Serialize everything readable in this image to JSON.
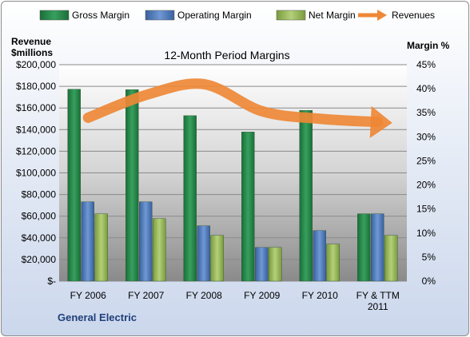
{
  "chart_data": {
    "type": "bar",
    "title": "12-Month Period Margins",
    "categories": [
      "FY 2006",
      "FY 2007",
      "FY 2008",
      "FY 2009",
      "FY 2010",
      "FY & TTM 2011"
    ],
    "series": [
      {
        "name": "Gross Margin",
        "axis": "right",
        "color": "#2a8f4e",
        "values": [
          39.9,
          39.8,
          34.4,
          31.0,
          35.5,
          14.0
        ]
      },
      {
        "name": "Operating Margin",
        "axis": "right",
        "color": "#4f7ec2",
        "values": [
          16.5,
          16.5,
          11.5,
          7.0,
          10.5,
          14.0
        ]
      },
      {
        "name": "Net Margin",
        "axis": "right",
        "color": "#9bbb59",
        "values": [
          14.0,
          13.0,
          9.5,
          7.0,
          7.7,
          9.5
        ]
      },
      {
        "name": "Revenues",
        "type": "line",
        "axis": "left",
        "color": "#ee8836",
        "values": [
          151000,
          172000,
          182000,
          157000,
          150000,
          147000
        ]
      }
    ],
    "ylabel_left": [
      "Revenue",
      "$millions"
    ],
    "ylabel_right": "Margin %",
    "ylim_left": [
      0,
      200000
    ],
    "ylim_right": [
      0,
      45
    ],
    "yticks_left": [
      "$-",
      "$20,000",
      "$40,000",
      "$60,000",
      "$80,000",
      "$100,000",
      "$120,000",
      "$140,000",
      "$160,000",
      "$180,000",
      "$200,000"
    ],
    "yticks_right": [
      "0%",
      "5%",
      "10%",
      "15%",
      "20%",
      "25%",
      "30%",
      "35%",
      "40%",
      "45%"
    ],
    "legend_position": "top",
    "grid": true
  },
  "footer": "General Electric"
}
